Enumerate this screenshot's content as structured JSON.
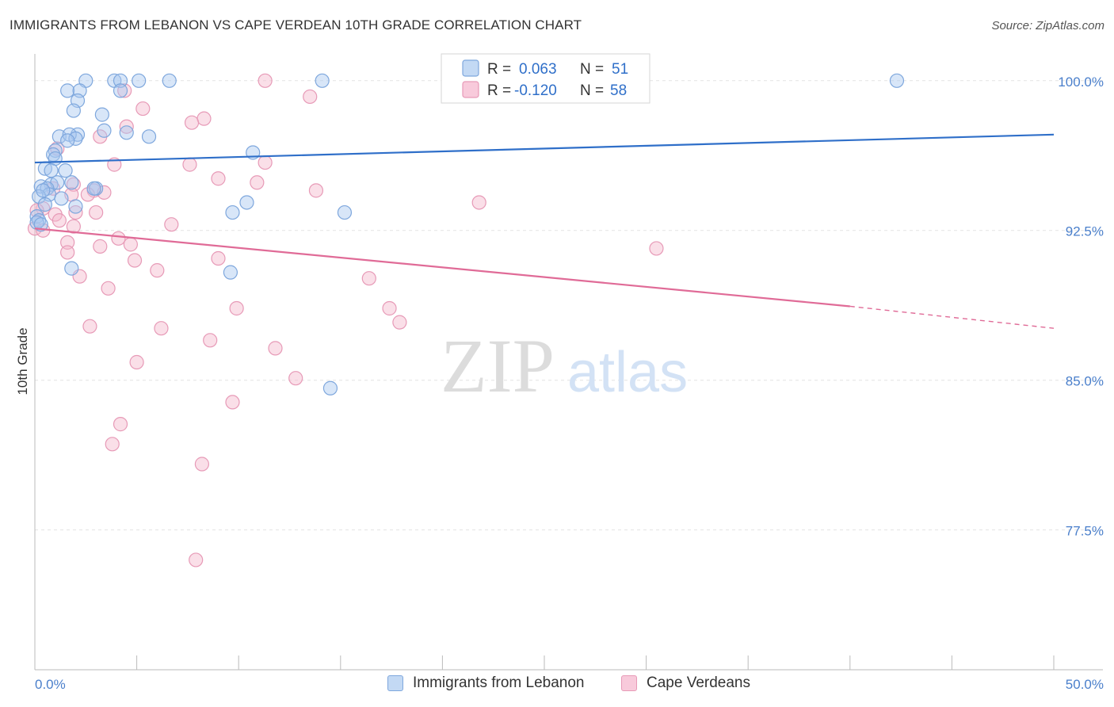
{
  "header": {
    "title": "IMMIGRANTS FROM LEBANON VS CAPE VERDEAN 10TH GRADE CORRELATION CHART",
    "source": "Source: ZipAtlas.com"
  },
  "watermark": {
    "zip": "ZIP",
    "atlas": "atlas"
  },
  "legend_box": {
    "rows": [
      {
        "r_label": "R =",
        "r_value": "0.063",
        "n_label": "N =",
        "n_value": "51"
      },
      {
        "r_label": "R =",
        "r_value": "-0.120",
        "n_label": "N =",
        "n_value": "58"
      }
    ]
  },
  "colors": {
    "blue": "#4a7fcb",
    "blue_fill": "#a9c8ef",
    "blue_line": "#2f6fc9",
    "pink": "#e06b97",
    "pink_fill": "#f5b7cc",
    "pink_line": "#e06b97",
    "grid": "#e3e3e3"
  },
  "chart_data": {
    "type": "scatter",
    "title": "IMMIGRANTS FROM LEBANON VS CAPE VERDEAN 10TH GRADE CORRELATION CHART",
    "xlabel": "",
    "ylabel": "10th Grade",
    "xlim": [
      0,
      50
    ],
    "ylim": [
      70.5,
      101.5
    ],
    "x_tick_labels": [
      "0.0%",
      "50.0%"
    ],
    "y_ticks": [
      100.0,
      92.5,
      85.0,
      77.5
    ],
    "y_tick_labels": [
      "100.0%",
      "92.5%",
      "85.0%",
      "77.5%"
    ],
    "grid": "horizontal dashed",
    "legend": "top-center and bottom",
    "series": [
      {
        "name": "Immigrants from Lebanon",
        "color": "#4a7fcb",
        "trend": {
          "x": [
            0,
            50
          ],
          "y": [
            95.9,
            97.3
          ]
        },
        "points": [
          [
            2.5,
            100.0
          ],
          [
            3.9,
            100.0
          ],
          [
            4.2,
            100.0
          ],
          [
            5.1,
            100.0
          ],
          [
            6.6,
            100.0
          ],
          [
            14.1,
            100.0
          ],
          [
            42.3,
            100.0
          ],
          [
            1.6,
            99.5
          ],
          [
            2.2,
            99.5
          ],
          [
            4.2,
            99.5
          ],
          [
            2.1,
            99.0
          ],
          [
            1.9,
            98.5
          ],
          [
            3.3,
            98.3
          ],
          [
            3.4,
            97.5
          ],
          [
            4.5,
            97.4
          ],
          [
            2.1,
            97.3
          ],
          [
            5.6,
            97.2
          ],
          [
            1.2,
            97.2
          ],
          [
            1.7,
            97.3
          ],
          [
            2.0,
            97.1
          ],
          [
            1.6,
            97.0
          ],
          [
            1.0,
            96.5
          ],
          [
            0.9,
            96.3
          ],
          [
            1.0,
            96.1
          ],
          [
            10.7,
            96.4
          ],
          [
            0.5,
            95.6
          ],
          [
            0.8,
            95.5
          ],
          [
            1.5,
            95.5
          ],
          [
            0.8,
            94.8
          ],
          [
            1.1,
            94.9
          ],
          [
            1.8,
            94.9
          ],
          [
            0.3,
            94.7
          ],
          [
            0.6,
            94.6
          ],
          [
            3.0,
            94.6
          ],
          [
            2.9,
            94.6
          ],
          [
            0.7,
            94.3
          ],
          [
            0.2,
            94.2
          ],
          [
            1.3,
            94.1
          ],
          [
            0.5,
            93.8
          ],
          [
            10.4,
            93.9
          ],
          [
            2.0,
            93.7
          ],
          [
            9.7,
            93.4
          ],
          [
            15.2,
            93.4
          ],
          [
            0.1,
            93.2
          ],
          [
            0.2,
            93.0
          ],
          [
            0.1,
            92.9
          ],
          [
            0.3,
            92.8
          ],
          [
            1.8,
            90.6
          ],
          [
            9.6,
            90.4
          ],
          [
            14.5,
            84.6
          ],
          [
            0.4,
            94.5
          ]
        ]
      },
      {
        "name": "Cape Verdeans",
        "color": "#e06b97",
        "trend": {
          "x": [
            0,
            40
          ],
          "y": [
            92.6,
            88.7
          ],
          "dashed_to": [
            50,
            87.6
          ]
        },
        "points": [
          [
            11.3,
            100.0
          ],
          [
            4.4,
            99.5
          ],
          [
            13.5,
            99.2
          ],
          [
            5.3,
            98.6
          ],
          [
            8.3,
            98.1
          ],
          [
            7.7,
            97.9
          ],
          [
            4.5,
            97.7
          ],
          [
            3.2,
            97.2
          ],
          [
            1.1,
            96.6
          ],
          [
            3.9,
            95.8
          ],
          [
            7.6,
            95.8
          ],
          [
            11.3,
            95.9
          ],
          [
            9.0,
            95.1
          ],
          [
            10.9,
            94.9
          ],
          [
            13.8,
            94.5
          ],
          [
            1.9,
            94.8
          ],
          [
            2.9,
            94.5
          ],
          [
            3.4,
            94.4
          ],
          [
            2.6,
            94.3
          ],
          [
            0.9,
            94.6
          ],
          [
            1.8,
            94.3
          ],
          [
            21.8,
            93.9
          ],
          [
            0.4,
            93.6
          ],
          [
            2.0,
            93.4
          ],
          [
            3.0,
            93.4
          ],
          [
            1.0,
            93.3
          ],
          [
            1.2,
            93.0
          ],
          [
            6.7,
            92.8
          ],
          [
            1.9,
            92.7
          ],
          [
            0.0,
            92.6
          ],
          [
            0.4,
            92.5
          ],
          [
            4.1,
            92.1
          ],
          [
            1.6,
            91.9
          ],
          [
            3.2,
            91.7
          ],
          [
            4.7,
            91.8
          ],
          [
            30.5,
            91.6
          ],
          [
            1.6,
            91.4
          ],
          [
            4.9,
            91.0
          ],
          [
            9.0,
            91.1
          ],
          [
            6.0,
            90.5
          ],
          [
            2.2,
            90.2
          ],
          [
            16.4,
            90.1
          ],
          [
            3.6,
            89.6
          ],
          [
            9.9,
            88.6
          ],
          [
            17.4,
            88.6
          ],
          [
            17.9,
            87.9
          ],
          [
            2.7,
            87.7
          ],
          [
            6.2,
            87.6
          ],
          [
            8.6,
            87.0
          ],
          [
            11.8,
            86.6
          ],
          [
            5.0,
            85.9
          ],
          [
            12.8,
            85.1
          ],
          [
            9.7,
            83.9
          ],
          [
            4.2,
            82.8
          ],
          [
            3.8,
            81.8
          ],
          [
            8.2,
            80.8
          ],
          [
            7.9,
            76.0
          ],
          [
            0.1,
            93.5
          ]
        ]
      }
    ]
  }
}
